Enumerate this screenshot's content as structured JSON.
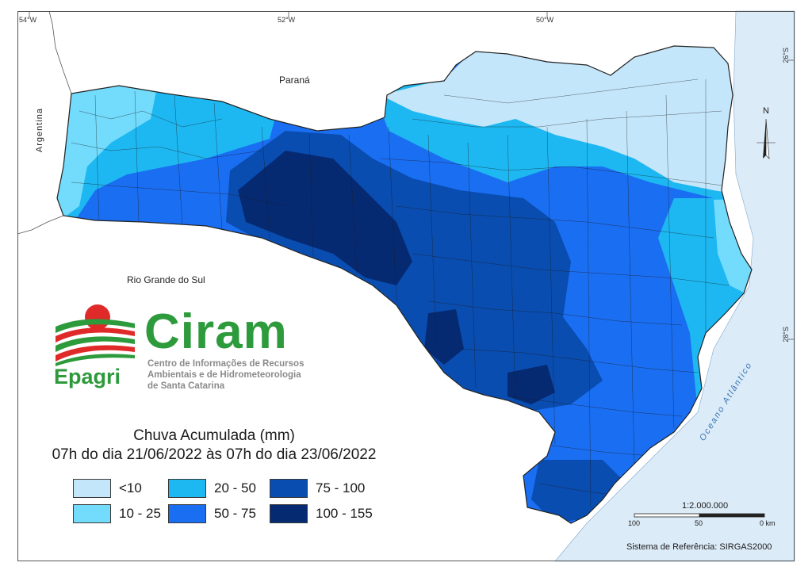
{
  "coordinates": {
    "longitudes": [
      "54°W",
      "52°W",
      "50°W"
    ],
    "latitudes": [
      "26°S",
      "28°S"
    ]
  },
  "places": {
    "parana": "Paraná",
    "argentina": "Argentina",
    "rio_grande_do_sul": "Rio Grande do Sul",
    "ocean": "Oceano Atlântico"
  },
  "logo": {
    "ciram": "Ciram",
    "epagri": "Epagri",
    "tagline": [
      "Centro de Informações de Recursos",
      "Ambientais e de Hidrometeorologia",
      "de Santa Catarina"
    ]
  },
  "legend": {
    "title_line1": "Chuva Acumulada (mm)",
    "title_line2": "07h do dia 21/06/2022 às 07h do dia 23/06/2022",
    "classes": [
      {
        "label": "<10",
        "color": "#c4e6fa"
      },
      {
        "label": "10 - 25",
        "color": "#73dbfb"
      },
      {
        "label": "20 - 50",
        "color": "#1db8f2"
      },
      {
        "label": "50 - 75",
        "color": "#1a6ef2"
      },
      {
        "label": "75 - 100",
        "color": "#0a4db0"
      },
      {
        "label": "100 - 155",
        "color": "#062a72"
      }
    ]
  },
  "scale": {
    "ratio": "1:2.000.000",
    "ticks": [
      "100",
      "50",
      "0 km"
    ]
  },
  "north": "N",
  "reference_system": "Sistema de Referência: SIRGAS2000",
  "colors": {
    "ocean": "#dcebf8",
    "land_outside": "#ffffff",
    "logo_green": "#2d9a3c",
    "logo_red": "#e02a2a"
  }
}
